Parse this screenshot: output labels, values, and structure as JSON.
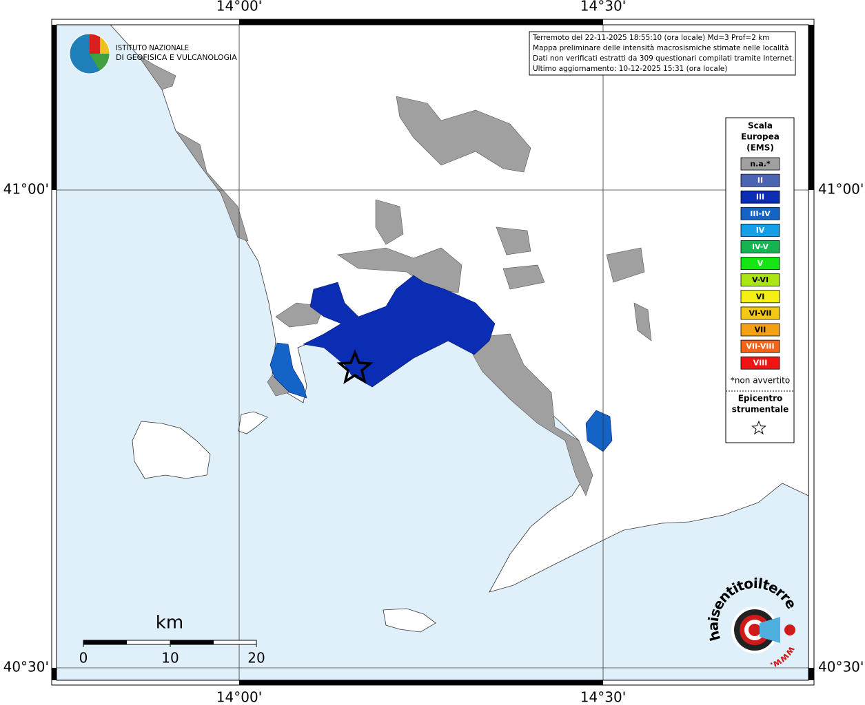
{
  "info": {
    "lines": [
      "Terremoto del 22-11-2025 18:55:10 (ora locale) Md=3 Prof=2 km",
      "Mappa preliminare delle intensità macrosismiche stimate nelle località",
      "Dati non verificati estratti da 309 questionari compilati tramite Internet.",
      "Ultimo aggiornamento: 10-12-2025 15:31 (ora locale)"
    ]
  },
  "logo": {
    "lines": [
      "ISTITUTO NAZIONALE",
      "DI GEOFISICA E VULCANOLOGIA"
    ]
  },
  "axes": {
    "top": [
      "14°00'",
      "14°30'"
    ],
    "bottom": [
      "14°00'",
      "14°30'"
    ],
    "left": [
      "41°00'",
      "40°30'"
    ],
    "right": [
      "41°00'",
      "40°30'"
    ]
  },
  "legend": {
    "title": [
      "Scala",
      "Europea",
      "(EMS)"
    ],
    "classes": [
      {
        "label": "n.a.*",
        "color": "#a0a0a0"
      },
      {
        "label": "II",
        "color": "#4b64b4"
      },
      {
        "label": "III",
        "color": "#0a2db4"
      },
      {
        "label": "III-IV",
        "color": "#1464c8"
      },
      {
        "label": "IV",
        "color": "#14a0e6"
      },
      {
        "label": "IV-V",
        "color": "#14b450"
      },
      {
        "label": "V",
        "color": "#14e614"
      },
      {
        "label": "V-VI",
        "color": "#aae614"
      },
      {
        "label": "VI",
        "color": "#f5f014"
      },
      {
        "label": "VI-VII",
        "color": "#f5c814"
      },
      {
        "label": "VII",
        "color": "#f5a014"
      },
      {
        "label": "VII-VIII",
        "color": "#f56414"
      },
      {
        "label": "VIII",
        "color": "#f01414"
      }
    ],
    "note": "*non avvertito",
    "epicenter": [
      "Epicentro",
      "strumentale"
    ]
  },
  "scale_bar": {
    "unit": "km",
    "labels": [
      "0",
      "10",
      "20"
    ]
  },
  "watermark": {
    "site": "haisentitoilterremoto.it",
    "prefix": "www."
  }
}
